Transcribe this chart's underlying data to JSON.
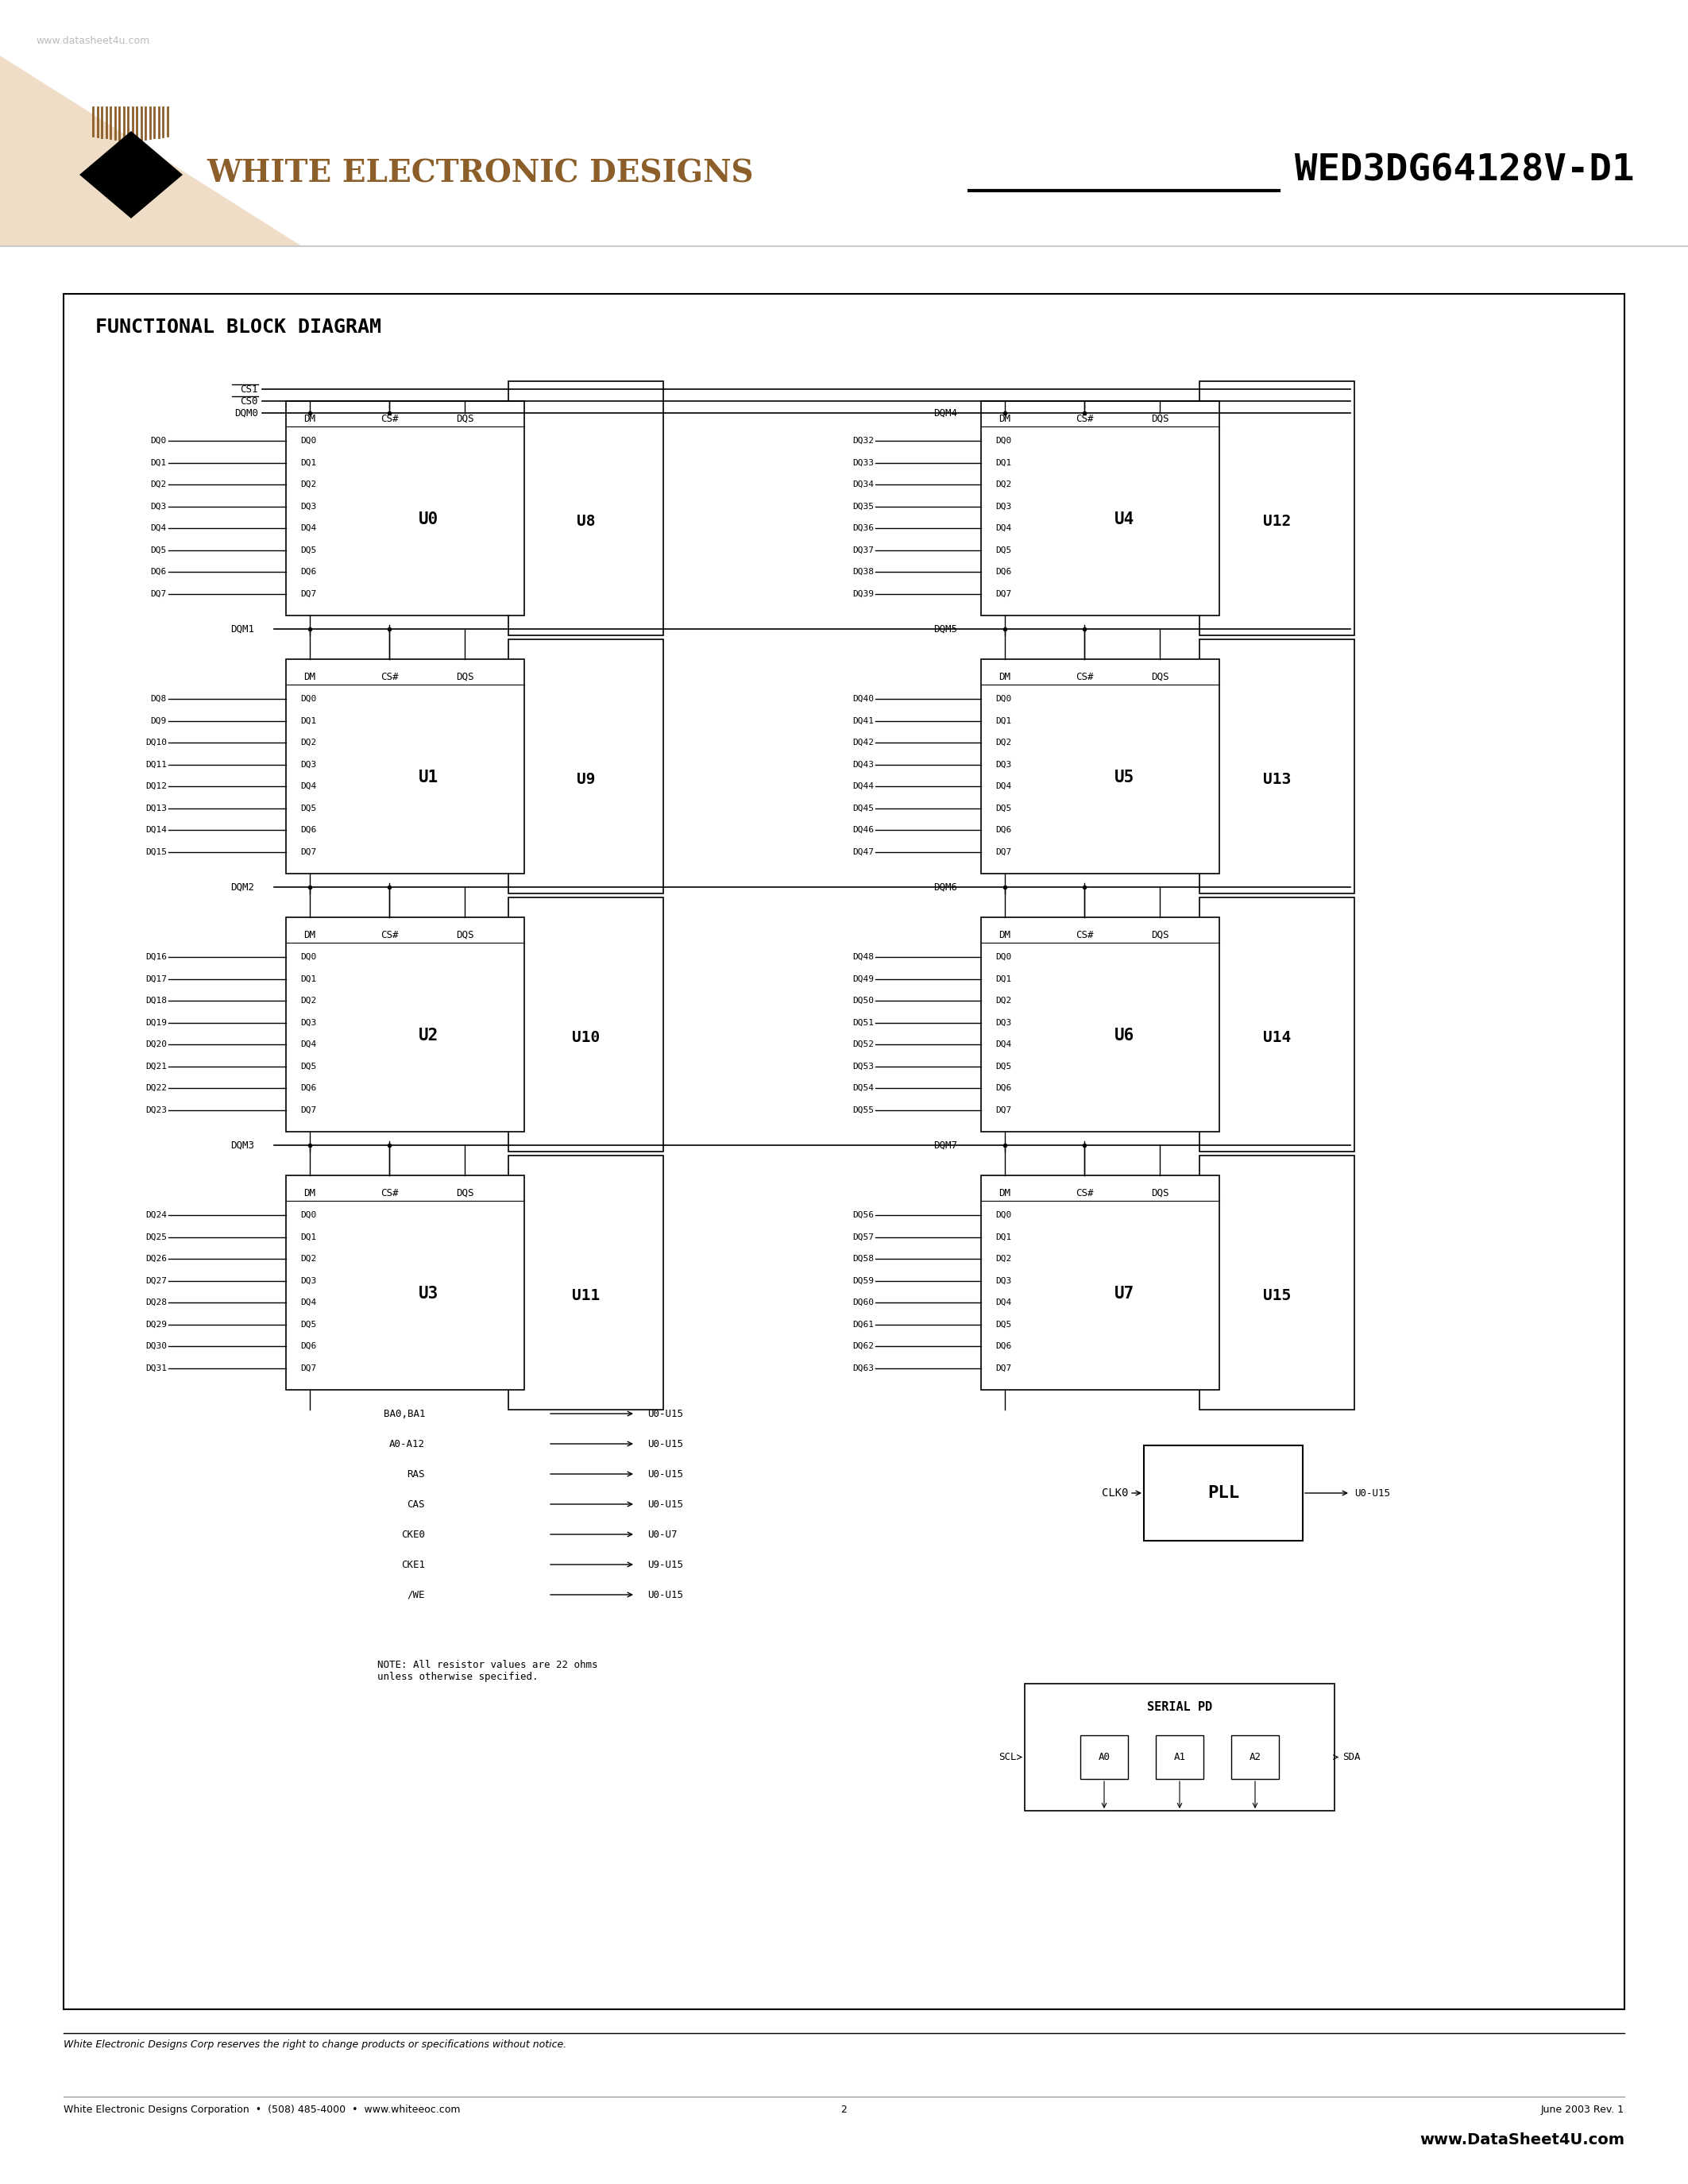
{
  "page_bg": "#ffffff",
  "header_tri_color": "#f0ddc8",
  "logo_color": "#8B5E2A",
  "part_number": "WED3DG64128V-D1",
  "watermark_top": "www.datasheet4u.com",
  "logo_text": "WHITE ELECTRONIC DESIGNS",
  "diagram_title": "FUNCTIONAL BLOCK DIAGRAM",
  "footer_italic": "White Electronic Designs Corp reserves the right to change products or specifications without notice.",
  "footer_company": "White Electronic Designs Corporation  •  (508) 485-4000  •  www.whiteeoc.com",
  "footer_page": "2",
  "footer_date": "June 2003 Rev. 1",
  "footer_wm": "www.DataSheet4U.com",
  "chip_header": [
    "DM",
    "CS#",
    "DQS"
  ],
  "ctrl_signals": [
    [
      "BA0,BA1",
      "U0-U15"
    ],
    [
      "A0-A12",
      "U0-U15"
    ],
    [
      "RAS",
      "U0-U15"
    ],
    [
      "CAS",
      "U0-U15"
    ],
    [
      "CKE0",
      "U0-U7"
    ],
    [
      "CKE1",
      "U9-U15"
    ],
    [
      "/WE",
      "U0-U15"
    ]
  ],
  "note_text": "NOTE: All resistor values are 22 ohms\nunless otherwise specified.",
  "left_dq_groups": [
    [
      0,
      [
        "DQ0",
        "DQ1",
        "DQ2",
        "DQ3",
        "DQ4",
        "DQ5",
        "DQ6",
        "DQ7"
      ]
    ],
    [
      8,
      [
        "DQ8",
        "DQ9",
        "DQ10",
        "DQ11",
        "DQ12",
        "DQ13",
        "DQ14",
        "DQ15"
      ]
    ],
    [
      16,
      [
        "DQ16",
        "DQ17",
        "DQ18",
        "DQ19",
        "DQ20",
        "DQ21",
        "DQ22",
        "DQ23"
      ]
    ],
    [
      24,
      [
        "DQ24",
        "DQ25",
        "DQ26",
        "DQ27",
        "DQ28",
        "DQ29",
        "DQ30",
        "DQ31"
      ]
    ]
  ],
  "right_dq_groups": [
    [
      32,
      [
        "DQ32",
        "DQ33",
        "DQ34",
        "DQ35",
        "DQ36",
        "DQ37",
        "DQ38",
        "DQ39"
      ]
    ],
    [
      40,
      [
        "DQ40",
        "DQ41",
        "DQ42",
        "DQ43",
        "DQ44",
        "DQ45",
        "DQ46",
        "DQ47"
      ]
    ],
    [
      48,
      [
        "DQ48",
        "DQ49",
        "DQ50",
        "DQ51",
        "DQ52",
        "DQ53",
        "DQ54",
        "DQ55"
      ]
    ],
    [
      56,
      [
        "DQ56",
        "DQ57",
        "DQ58",
        "DQ59",
        "DQ60",
        "DQ61",
        "DQ62",
        "DQ63"
      ]
    ]
  ]
}
